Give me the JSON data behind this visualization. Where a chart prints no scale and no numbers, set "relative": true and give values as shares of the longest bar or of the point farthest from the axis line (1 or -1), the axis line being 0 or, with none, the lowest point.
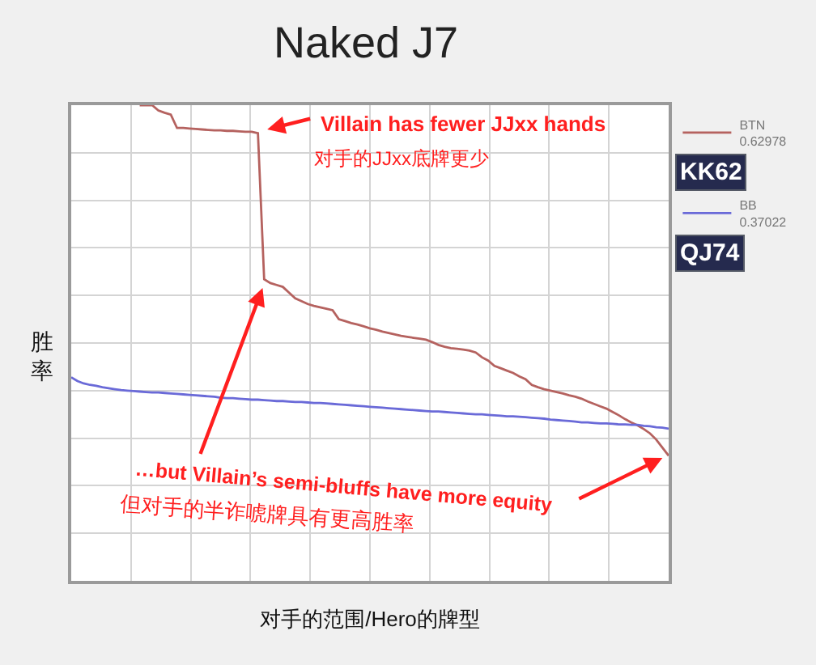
{
  "chart_data": {
    "type": "line",
    "title": "Naked J7",
    "xlabel": "对手的范围/Hero的牌型",
    "ylabel": "胜率",
    "relative": true,
    "grid": true,
    "legend": "right",
    "categories": [
      null,
      null,
      null,
      null,
      null,
      null,
      null,
      null,
      null,
      null,
      null,
      null,
      null,
      null,
      null,
      null,
      null,
      null,
      null,
      null,
      null,
      null,
      null,
      null,
      null,
      null,
      null,
      null,
      null,
      null,
      null,
      null,
      null,
      null,
      null,
      null,
      null,
      null,
      null,
      null,
      null,
      null,
      null,
      null,
      null,
      null,
      null,
      null,
      null,
      null,
      null,
      null,
      null,
      null,
      null,
      null,
      null,
      null,
      null,
      null,
      null,
      null,
      null,
      null,
      null,
      null,
      null,
      null,
      null,
      null,
      null,
      null,
      null,
      null,
      null,
      null,
      null,
      null,
      null,
      null,
      null,
      null,
      null,
      null,
      null,
      null,
      null,
      null,
      null,
      null,
      null,
      null,
      null,
      null,
      null,
      null,
      null
    ],
    "series": [
      {
        "name": "BTN\n0.62978",
        "color": "#b5625f",
        "values": [
          null,
          null,
          null,
          null,
          null,
          null,
          null,
          null,
          null,
          null,
          null,
          1,
          1,
          1,
          0.989,
          0.984,
          0.98,
          0.952,
          0.952,
          0.951,
          0.95,
          0.949,
          0.948,
          0.947,
          0.947,
          0.946,
          0.946,
          0.945,
          0.944,
          0.944,
          0.941,
          0.634,
          0.626,
          0.622,
          0.618,
          0.606,
          0.594,
          0.588,
          0.582,
          0.578,
          0.575,
          0.572,
          0.569,
          0.55,
          0.546,
          0.542,
          0.539,
          0.535,
          0.531,
          0.528,
          0.524,
          0.521,
          0.518,
          0.515,
          0.513,
          0.511,
          0.509,
          0.507,
          0.502,
          0.496,
          0.492,
          0.489,
          0.488,
          0.486,
          0.484,
          0.48,
          0.47,
          0.463,
          0.452,
          0.447,
          0.442,
          0.437,
          0.43,
          0.424,
          0.412,
          0.407,
          0.403,
          0.4,
          0.397,
          0.394,
          0.39,
          0.387,
          0.383,
          0.377,
          0.372,
          0.367,
          0.362,
          0.355,
          0.348,
          0.34,
          0.333,
          0.327,
          0.319,
          0.31,
          0.297,
          0.28,
          0.263
        ]
      },
      {
        "name": "BB\n0.37022",
        "color": "#6a6ad8",
        "values": [
          0.428,
          0.42,
          0.415,
          0.412,
          0.41,
          0.407,
          0.405,
          0.403,
          0.401,
          0.4,
          0.399,
          0.398,
          0.397,
          0.396,
          0.396,
          0.395,
          0.394,
          0.393,
          0.392,
          0.391,
          0.39,
          0.389,
          0.388,
          0.387,
          0.385,
          0.384,
          0.384,
          0.383,
          0.382,
          0.381,
          0.381,
          0.38,
          0.379,
          0.378,
          0.378,
          0.377,
          0.376,
          0.376,
          0.375,
          0.374,
          0.374,
          0.373,
          0.372,
          0.371,
          0.37,
          0.369,
          0.368,
          0.367,
          0.366,
          0.365,
          0.364,
          0.363,
          0.362,
          0.361,
          0.36,
          0.359,
          0.358,
          0.357,
          0.356,
          0.356,
          0.355,
          0.354,
          0.353,
          0.352,
          0.351,
          0.35,
          0.35,
          0.349,
          0.348,
          0.347,
          0.346,
          0.346,
          0.345,
          0.344,
          0.343,
          0.342,
          0.341,
          0.339,
          0.338,
          0.337,
          0.336,
          0.335,
          0.333,
          0.333,
          0.332,
          0.331,
          0.331,
          0.33,
          0.329,
          0.329,
          0.328,
          0.328,
          0.326,
          0.325,
          0.323,
          0.322,
          0.32
        ]
      }
    ],
    "annotations": [
      "Villain has fewer JJxx hands",
      "对手的JJxx底牌更少",
      "…but Villain’s semi-bluffs have more equity",
      "但对手的半诈唬牌具有更高胜率",
      "KK62",
      "QJ74"
    ]
  }
}
